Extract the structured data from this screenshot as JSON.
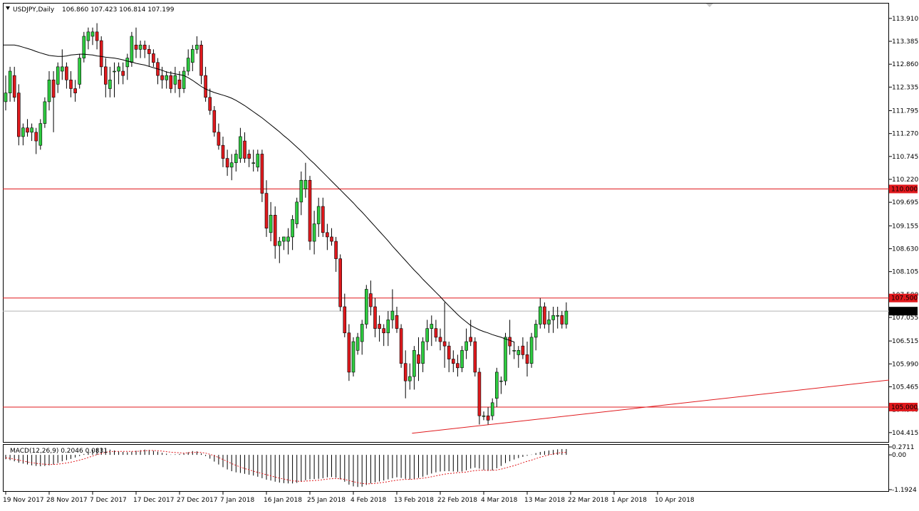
{
  "header": {
    "symbol_label": "USDJPY,Daily",
    "ohlc": "106.860 107.423 106.814 107.199"
  },
  "macd_header": "MACD(12,26,9) 0.2046 0.0831",
  "colors": {
    "bull": "#2ecc40",
    "bear": "#e0191d",
    "candle_outline": "#000000",
    "moving_average": "#000000",
    "horizontal_levels": "#e0191d",
    "trendline": "#e0191d",
    "current_price_line": "#b4b4b4",
    "macd_signal": "#e0191d",
    "background": "#ffffff"
  },
  "chart_data": [
    {
      "type": "candlestick",
      "title": "USDJPY,Daily",
      "ylim": [
        104.2,
        114.25
      ],
      "y_ticks": [
        "113.910",
        "113.385",
        "112.860",
        "112.335",
        "111.795",
        "111.270",
        "110.745",
        "110.220",
        "109.695",
        "109.155",
        "108.630",
        "108.105",
        "107.580",
        "107.055",
        "106.515",
        "105.990",
        "105.465",
        "104.940",
        "104.415"
      ],
      "x_ticks": [
        "19 Nov 2017",
        "28 Nov 2017",
        "7 Dec 2017",
        "17 Dec 2017",
        "27 Dec 2017",
        "7 Jan 2018",
        "16 Jan 2018",
        "25 Jan 2018",
        "4 Feb 2018",
        "13 Feb 2018",
        "22 Feb 2018",
        "4 Mar 2018",
        "13 Mar 2018",
        "22 Mar 2018",
        "1 Apr 2018",
        "10 Apr 2018"
      ],
      "x_tick_index": [
        0,
        10,
        20,
        30,
        40,
        50,
        60,
        70,
        80,
        90,
        100,
        110,
        120,
        130,
        140,
        150
      ],
      "candles": [
        [
          112.0,
          112.6,
          111.8,
          112.2
        ],
        [
          112.2,
          112.8,
          112.0,
          112.7
        ],
        [
          112.6,
          112.8,
          112.0,
          112.1
        ],
        [
          112.2,
          112.4,
          111.0,
          111.2
        ],
        [
          111.2,
          111.5,
          111.0,
          111.4
        ],
        [
          111.4,
          111.6,
          111.2,
          111.3
        ],
        [
          111.3,
          111.5,
          111.1,
          111.4
        ],
        [
          111.3,
          111.4,
          110.8,
          111.1
        ],
        [
          111.0,
          111.6,
          110.9,
          111.5
        ],
        [
          111.5,
          112.1,
          111.4,
          112.0
        ],
        [
          112.0,
          112.7,
          111.8,
          112.5
        ],
        [
          112.5,
          112.7,
          111.3,
          112.1
        ],
        [
          112.4,
          112.9,
          112.2,
          112.8
        ],
        [
          112.7,
          113.2,
          112.5,
          112.8
        ],
        [
          112.8,
          112.9,
          112.3,
          112.5
        ],
        [
          112.5,
          112.7,
          112.1,
          112.3
        ],
        [
          112.3,
          112.5,
          112.0,
          112.2
        ],
        [
          112.4,
          113.1,
          112.3,
          113.0
        ],
        [
          113.0,
          113.6,
          112.9,
          113.5
        ],
        [
          113.4,
          113.7,
          113.2,
          113.6
        ],
        [
          113.5,
          113.7,
          113.3,
          113.6
        ],
        [
          113.6,
          113.8,
          113.2,
          113.4
        ],
        [
          113.4,
          113.5,
          112.6,
          112.8
        ],
        [
          112.8,
          113.0,
          112.1,
          112.4
        ],
        [
          112.3,
          112.8,
          112.1,
          112.5
        ],
        [
          112.7,
          112.9,
          112.1,
          112.7
        ],
        [
          112.7,
          112.9,
          112.4,
          112.8
        ],
        [
          112.7,
          112.9,
          112.4,
          112.6
        ],
        [
          112.8,
          113.1,
          112.5,
          113.0
        ],
        [
          112.9,
          113.6,
          112.8,
          113.5
        ],
        [
          113.3,
          113.7,
          113.0,
          113.2
        ],
        [
          113.2,
          113.4,
          113.0,
          113.3
        ],
        [
          113.3,
          113.4,
          113.0,
          113.2
        ],
        [
          113.2,
          113.3,
          112.8,
          113.1
        ],
        [
          113.1,
          113.2,
          112.8,
          112.9
        ],
        [
          112.9,
          113.0,
          112.4,
          112.6
        ],
        [
          112.6,
          112.8,
          112.3,
          112.5
        ],
        [
          112.5,
          112.7,
          112.3,
          112.6
        ],
        [
          112.6,
          112.7,
          112.2,
          112.3
        ],
        [
          112.4,
          112.8,
          112.2,
          112.6
        ],
        [
          112.5,
          112.7,
          112.1,
          112.3
        ],
        [
          112.3,
          112.8,
          112.2,
          112.7
        ],
        [
          112.7,
          113.2,
          112.6,
          113.0
        ],
        [
          112.9,
          113.3,
          112.7,
          113.2
        ],
        [
          113.2,
          113.5,
          113.1,
          113.3
        ],
        [
          113.3,
          113.4,
          112.4,
          112.6
        ],
        [
          112.6,
          112.8,
          112.0,
          112.1
        ],
        [
          112.1,
          112.3,
          111.7,
          111.8
        ],
        [
          111.8,
          111.9,
          111.2,
          111.3
        ],
        [
          111.3,
          111.5,
          110.9,
          111.0
        ],
        [
          111.0,
          111.2,
          110.5,
          110.7
        ],
        [
          110.7,
          110.9,
          110.3,
          110.5
        ],
        [
          110.5,
          110.8,
          110.2,
          110.6
        ],
        [
          110.6,
          110.9,
          110.4,
          110.8
        ],
        [
          110.7,
          111.4,
          110.6,
          111.2
        ],
        [
          111.1,
          111.3,
          110.6,
          110.7
        ],
        [
          110.8,
          110.9,
          110.5,
          110.7
        ],
        [
          110.6,
          110.9,
          110.4,
          110.6
        ],
        [
          110.5,
          110.9,
          110.4,
          110.8
        ],
        [
          110.8,
          110.9,
          109.7,
          109.9
        ],
        [
          109.9,
          110.2,
          108.9,
          109.1
        ],
        [
          109.0,
          109.7,
          108.8,
          109.4
        ],
        [
          109.4,
          109.6,
          108.4,
          108.7
        ],
        [
          108.7,
          108.9,
          108.3,
          108.8
        ],
        [
          108.8,
          108.9,
          108.6,
          108.9
        ],
        [
          108.8,
          109.1,
          108.5,
          108.9
        ],
        [
          108.9,
          109.4,
          108.6,
          109.3
        ],
        [
          109.2,
          109.8,
          109.1,
          109.7
        ],
        [
          109.7,
          110.4,
          109.4,
          110.2
        ],
        [
          110.0,
          110.6,
          109.8,
          110.2
        ],
        [
          110.2,
          110.3,
          108.6,
          108.8
        ],
        [
          108.8,
          109.5,
          108.5,
          109.2
        ],
        [
          109.2,
          109.8,
          108.9,
          109.6
        ],
        [
          109.6,
          109.8,
          108.9,
          109.0
        ],
        [
          109.0,
          109.2,
          108.6,
          108.9
        ],
        [
          108.9,
          109.1,
          108.7,
          108.8
        ],
        [
          108.8,
          108.9,
          108.1,
          108.4
        ],
        [
          108.4,
          108.5,
          107.2,
          107.3
        ],
        [
          107.3,
          107.6,
          106.6,
          106.7
        ],
        [
          106.7,
          106.9,
          105.6,
          105.8
        ],
        [
          105.8,
          106.6,
          105.7,
          106.5
        ],
        [
          106.3,
          106.7,
          106.2,
          106.6
        ],
        [
          106.5,
          107.0,
          106.2,
          106.9
        ],
        [
          106.9,
          107.8,
          106.8,
          107.7
        ],
        [
          107.6,
          107.9,
          107.1,
          107.3
        ],
        [
          107.3,
          107.5,
          106.6,
          106.8
        ],
        [
          106.9,
          107.1,
          106.5,
          106.8
        ],
        [
          106.8,
          106.9,
          106.4,
          106.7
        ],
        [
          106.7,
          107.2,
          106.4,
          107.0
        ],
        [
          107.0,
          107.7,
          106.8,
          107.2
        ],
        [
          107.1,
          107.3,
          106.7,
          106.8
        ],
        [
          106.8,
          106.9,
          105.9,
          106.0
        ],
        [
          106.0,
          106.3,
          105.2,
          105.6
        ],
        [
          105.6,
          106.0,
          105.4,
          105.7
        ],
        [
          105.7,
          106.4,
          105.4,
          106.3
        ],
        [
          106.2,
          106.6,
          105.6,
          106.0
        ],
        [
          106.0,
          106.6,
          105.8,
          106.5
        ],
        [
          106.5,
          107.0,
          106.3,
          106.8
        ],
        [
          106.8,
          107.1,
          106.4,
          106.9
        ],
        [
          106.8,
          107.0,
          106.5,
          106.6
        ],
        [
          106.6,
          106.8,
          106.3,
          106.5
        ],
        [
          106.5,
          107.4,
          105.9,
          106.4
        ],
        [
          106.4,
          106.5,
          105.8,
          106.1
        ],
        [
          106.1,
          106.3,
          105.8,
          106.0
        ],
        [
          106.0,
          106.2,
          105.7,
          105.9
        ],
        [
          105.9,
          106.4,
          105.8,
          106.3
        ],
        [
          106.3,
          106.8,
          106.1,
          106.5
        ],
        [
          106.6,
          107.0,
          106.4,
          106.5
        ],
        [
          106.5,
          106.6,
          105.7,
          105.8
        ],
        [
          105.8,
          105.9,
          104.6,
          104.8
        ],
        [
          104.8,
          104.9,
          104.7,
          104.8
        ],
        [
          104.8,
          105.0,
          104.6,
          104.7
        ],
        [
          104.8,
          105.2,
          104.7,
          105.1
        ],
        [
          105.2,
          105.9,
          105.0,
          105.8
        ],
        [
          105.6,
          105.7,
          105.3,
          105.6
        ],
        [
          105.6,
          106.7,
          105.5,
          106.6
        ],
        [
          106.6,
          107.0,
          106.2,
          106.4
        ],
        [
          106.3,
          106.5,
          106.1,
          106.3
        ],
        [
          106.2,
          106.4,
          105.9,
          106.3
        ],
        [
          106.4,
          106.6,
          106.1,
          106.2
        ],
        [
          106.2,
          106.5,
          105.7,
          106.0
        ],
        [
          106.0,
          106.7,
          105.9,
          106.6
        ],
        [
          106.6,
          107.0,
          106.3,
          106.9
        ],
        [
          106.9,
          107.5,
          106.8,
          107.3
        ],
        [
          107.3,
          107.4,
          106.8,
          106.9
        ],
        [
          106.9,
          107.2,
          106.7,
          107.0
        ],
        [
          107.0,
          107.3,
          106.7,
          107.1
        ],
        [
          107.1,
          107.3,
          106.8,
          107.1
        ],
        [
          107.1,
          107.2,
          106.8,
          106.9
        ],
        [
          106.9,
          107.4,
          106.8,
          107.2
        ]
      ],
      "sma_series": [
        113.3,
        113.3,
        113.3,
        113.3,
        113.3,
        113.28,
        113.25,
        113.22,
        113.19,
        113.15,
        113.12,
        113.09,
        113.06,
        113.05,
        113.04,
        113.04,
        113.05,
        113.07,
        113.08,
        113.09,
        113.09,
        113.08,
        113.07,
        113.05,
        113.04,
        113.02,
        113.01,
        113.0,
        112.98,
        112.96,
        112.93,
        112.91,
        112.88,
        112.86,
        112.84,
        112.81,
        112.78,
        112.75,
        112.72,
        112.68,
        112.66,
        112.64,
        112.62,
        112.6,
        112.55,
        112.49,
        112.42,
        112.35,
        112.29,
        112.25,
        112.21,
        112.18,
        112.15,
        112.12,
        112.08,
        112.03,
        111.97,
        111.91,
        111.84,
        111.77,
        111.7,
        111.63,
        111.55,
        111.47,
        111.39,
        111.31,
        111.22,
        111.14,
        111.05,
        110.96,
        110.87,
        110.77,
        110.67,
        110.58,
        110.48,
        110.38,
        110.28,
        110.18,
        110.08,
        109.98,
        109.88,
        109.78,
        109.68,
        109.57,
        109.47,
        109.36,
        109.25,
        109.14,
        109.03,
        108.92,
        108.81,
        108.69,
        108.58,
        108.47,
        108.36,
        108.25,
        108.14,
        108.04,
        107.93,
        107.83,
        107.73,
        107.63,
        107.53,
        107.42,
        107.32,
        107.22,
        107.12,
        107.03,
        106.95,
        106.87,
        106.82,
        106.77,
        106.73,
        106.7,
        106.66,
        106.63,
        106.6,
        106.56,
        106.53,
        106.49
      ],
      "sma_start_index": 16,
      "horizontal_levels": [
        {
          "value": 110.0,
          "label": "110.000"
        },
        {
          "value": 107.5,
          "label": "107.500"
        },
        {
          "value": 105.0,
          "label": "105.000"
        }
      ],
      "current_price": {
        "value": 107.199,
        "label": "107.199"
      },
      "trendline": {
        "from": [
          93.5,
          104.4
        ],
        "to": [
          170.0,
          105.25
        ]
      }
    },
    {
      "type": "histogram",
      "title": "MACD(12,26,9) 0.2046 0.0831",
      "ylim": [
        -1.1924,
        0.2711
      ],
      "y_ticks": [
        "0.2711",
        "0.00",
        "-1.1924"
      ],
      "histogram": [
        -0.15,
        -0.18,
        -0.22,
        -0.27,
        -0.3,
        -0.33,
        -0.36,
        -0.38,
        -0.39,
        -0.38,
        -0.36,
        -0.33,
        -0.28,
        -0.22,
        -0.18,
        -0.14,
        -0.09,
        -0.04,
        0.03,
        0.1,
        0.17,
        0.22,
        0.24,
        0.22,
        0.18,
        0.15,
        0.12,
        0.1,
        0.09,
        0.11,
        0.14,
        0.16,
        0.18,
        0.17,
        0.14,
        0.11,
        0.07,
        0.04,
        0.01,
        0.02,
        0.03,
        0.05,
        0.09,
        0.13,
        0.12,
        0.05,
        -0.04,
        -0.13,
        -0.23,
        -0.33,
        -0.42,
        -0.5,
        -0.56,
        -0.6,
        -0.62,
        -0.65,
        -0.68,
        -0.71,
        -0.75,
        -0.8,
        -0.85,
        -0.88,
        -0.92,
        -0.95,
        -0.97,
        -0.98,
        -0.98,
        -0.96,
        -0.92,
        -0.87,
        -0.84,
        -0.83,
        -0.82,
        -0.8,
        -0.77,
        -0.76,
        -0.78,
        -0.84,
        -0.92,
        -1.02,
        -1.08,
        -1.1,
        -1.09,
        -1.03,
        -0.98,
        -0.94,
        -0.91,
        -0.88,
        -0.84,
        -0.8,
        -0.77,
        -0.79,
        -0.82,
        -0.84,
        -0.82,
        -0.79,
        -0.75,
        -0.69,
        -0.64,
        -0.6,
        -0.57,
        -0.56,
        -0.56,
        -0.57,
        -0.58,
        -0.57,
        -0.53,
        -0.47,
        -0.44,
        -0.47,
        -0.52,
        -0.55,
        -0.53,
        -0.46,
        -0.38,
        -0.28,
        -0.22,
        -0.16,
        -0.11,
        -0.07,
        -0.03,
        0.01,
        0.06,
        0.1,
        0.13,
        0.15,
        0.17,
        0.19,
        0.2,
        0.2
      ],
      "signal": [
        -0.1,
        -0.12,
        -0.15,
        -0.18,
        -0.21,
        -0.24,
        -0.27,
        -0.29,
        -0.31,
        -0.32,
        -0.33,
        -0.33,
        -0.32,
        -0.3,
        -0.28,
        -0.25,
        -0.22,
        -0.18,
        -0.14,
        -0.09,
        -0.04,
        0.01,
        0.05,
        0.09,
        0.11,
        0.12,
        0.12,
        0.12,
        0.12,
        0.12,
        0.12,
        0.13,
        0.14,
        0.15,
        0.15,
        0.14,
        0.13,
        0.11,
        0.09,
        0.08,
        0.07,
        0.06,
        0.07,
        0.08,
        0.09,
        0.08,
        0.06,
        0.02,
        -0.03,
        -0.09,
        -0.16,
        -0.23,
        -0.3,
        -0.36,
        -0.42,
        -0.47,
        -0.51,
        -0.56,
        -0.6,
        -0.64,
        -0.68,
        -0.72,
        -0.76,
        -0.8,
        -0.83,
        -0.86,
        -0.89,
        -0.9,
        -0.91,
        -0.9,
        -0.89,
        -0.88,
        -0.87,
        -0.85,
        -0.83,
        -0.82,
        -0.81,
        -0.82,
        -0.84,
        -0.88,
        -0.92,
        -0.95,
        -0.98,
        -0.99,
        -0.99,
        -0.98,
        -0.96,
        -0.94,
        -0.92,
        -0.89,
        -0.87,
        -0.85,
        -0.84,
        -0.84,
        -0.83,
        -0.82,
        -0.8,
        -0.78,
        -0.75,
        -0.72,
        -0.69,
        -0.66,
        -0.64,
        -0.63,
        -0.61,
        -0.6,
        -0.59,
        -0.56,
        -0.54,
        -0.53,
        -0.53,
        -0.53,
        -0.53,
        -0.52,
        -0.49,
        -0.45,
        -0.41,
        -0.37,
        -0.32,
        -0.27,
        -0.22,
        -0.18,
        -0.13,
        -0.08,
        -0.04,
        0.0,
        0.03,
        0.06,
        0.08,
        0.08
      ]
    }
  ]
}
